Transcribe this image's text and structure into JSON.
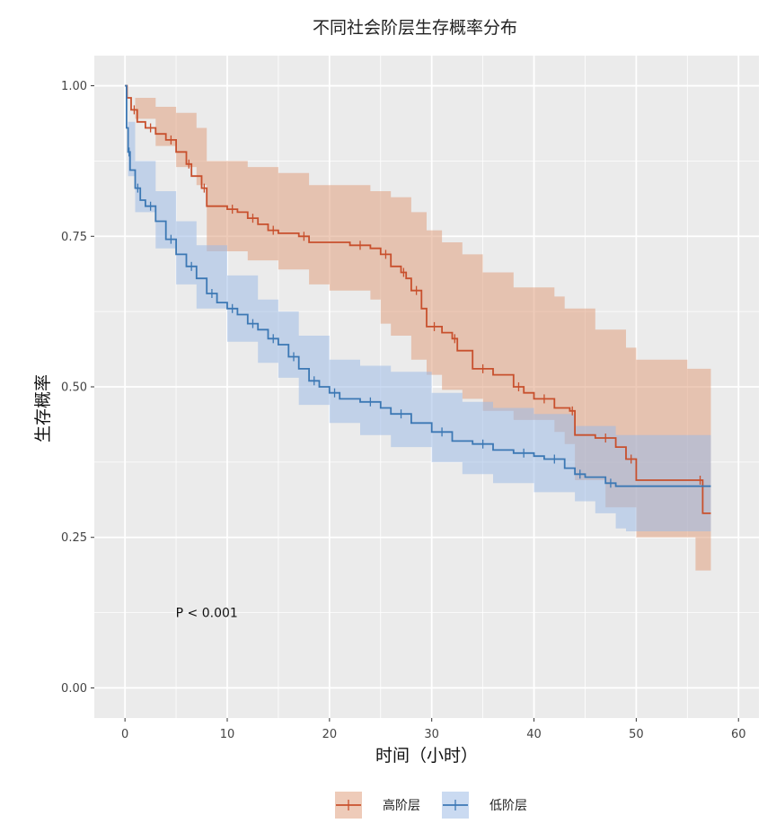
{
  "chart_data": {
    "type": "line",
    "title": "不同社会阶层生存概率分布",
    "xlabel": "时间（小时）",
    "ylabel": "生存概率",
    "xlim": [
      -3,
      62
    ],
    "ylim": [
      -0.05,
      1.05
    ],
    "x_ticks": [
      0,
      10,
      20,
      30,
      40,
      50,
      60
    ],
    "y_ticks": [
      0,
      0.25,
      0.5,
      0.75,
      1.0
    ],
    "x_tick_labels": [
      "0",
      "10",
      "20",
      "30",
      "40",
      "50",
      "60"
    ],
    "y_tick_labels": [
      "0.00",
      "0.25",
      "0.50",
      "0.75",
      "1.00"
    ],
    "grid": true,
    "legend_position": "bottom",
    "annotation": {
      "text": "P < 0.001",
      "x": 8,
      "y": 0.125
    },
    "colors": {
      "high_line": "#c8502d",
      "high_band": "#e0a080",
      "low_line": "#3c78b4",
      "low_band": "#9fbbe6",
      "panel": "#ebebeb",
      "grid": "#ffffff"
    },
    "series": [
      {
        "name": "高阶层",
        "color": "#c8502d",
        "points": [
          [
            0,
            1.0
          ],
          [
            0.2,
            0.98
          ],
          [
            0.6,
            0.96
          ],
          [
            1.2,
            0.94
          ],
          [
            2,
            0.93
          ],
          [
            3,
            0.92
          ],
          [
            4,
            0.91
          ],
          [
            5,
            0.89
          ],
          [
            6,
            0.87
          ],
          [
            6.5,
            0.85
          ],
          [
            7.5,
            0.83
          ],
          [
            8,
            0.8
          ],
          [
            10,
            0.795
          ],
          [
            11,
            0.79
          ],
          [
            12,
            0.78
          ],
          [
            13,
            0.77
          ],
          [
            14,
            0.76
          ],
          [
            15,
            0.755
          ],
          [
            17,
            0.75
          ],
          [
            18,
            0.74
          ],
          [
            22,
            0.735
          ],
          [
            24,
            0.73
          ],
          [
            25,
            0.72
          ],
          [
            26,
            0.7
          ],
          [
            27,
            0.69
          ],
          [
            27.5,
            0.68
          ],
          [
            28,
            0.66
          ],
          [
            29,
            0.63
          ],
          [
            29.5,
            0.6
          ],
          [
            31,
            0.59
          ],
          [
            32,
            0.58
          ],
          [
            32.5,
            0.56
          ],
          [
            34,
            0.53
          ],
          [
            36,
            0.52
          ],
          [
            38,
            0.5
          ],
          [
            39,
            0.49
          ],
          [
            40,
            0.48
          ],
          [
            42,
            0.465
          ],
          [
            43.5,
            0.46
          ],
          [
            44,
            0.42
          ],
          [
            46,
            0.415
          ],
          [
            48,
            0.4
          ],
          [
            49,
            0.38
          ],
          [
            50,
            0.345
          ],
          [
            56,
            0.345
          ],
          [
            56.5,
            0.29
          ],
          [
            57.3,
            0.29
          ]
        ],
        "upper": [
          [
            0,
            1.0
          ],
          [
            1,
            0.98
          ],
          [
            3,
            0.965
          ],
          [
            5,
            0.955
          ],
          [
            7,
            0.93
          ],
          [
            8,
            0.875
          ],
          [
            12,
            0.865
          ],
          [
            15,
            0.855
          ],
          [
            18,
            0.835
          ],
          [
            24,
            0.825
          ],
          [
            26,
            0.815
          ],
          [
            28,
            0.79
          ],
          [
            29.5,
            0.76
          ],
          [
            31,
            0.74
          ],
          [
            33,
            0.72
          ],
          [
            35,
            0.69
          ],
          [
            38,
            0.665
          ],
          [
            42,
            0.65
          ],
          [
            43,
            0.63
          ],
          [
            46,
            0.595
          ],
          [
            49,
            0.565
          ],
          [
            50,
            0.545
          ],
          [
            55,
            0.53
          ],
          [
            57.3,
            0.43
          ]
        ],
        "lower": [
          [
            0,
            1.0
          ],
          [
            1,
            0.945
          ],
          [
            3,
            0.9
          ],
          [
            5,
            0.865
          ],
          [
            7,
            0.835
          ],
          [
            8,
            0.725
          ],
          [
            12,
            0.71
          ],
          [
            15,
            0.695
          ],
          [
            18,
            0.67
          ],
          [
            20,
            0.66
          ],
          [
            24,
            0.645
          ],
          [
            25,
            0.605
          ],
          [
            26,
            0.585
          ],
          [
            28,
            0.545
          ],
          [
            29.5,
            0.52
          ],
          [
            31,
            0.495
          ],
          [
            33,
            0.48
          ],
          [
            35,
            0.46
          ],
          [
            38,
            0.445
          ],
          [
            42,
            0.425
          ],
          [
            43,
            0.405
          ],
          [
            44,
            0.345
          ],
          [
            47,
            0.3
          ],
          [
            50,
            0.25
          ],
          [
            55,
            0.25
          ],
          [
            55.8,
            0.195
          ],
          [
            57.3,
            0.195
          ]
        ]
      },
      {
        "name": "低阶层",
        "color": "#3c78b4",
        "points": [
          [
            0,
            1.0
          ],
          [
            0.15,
            0.93
          ],
          [
            0.3,
            0.89
          ],
          [
            0.5,
            0.86
          ],
          [
            1,
            0.83
          ],
          [
            1.5,
            0.81
          ],
          [
            2,
            0.8
          ],
          [
            3,
            0.775
          ],
          [
            4,
            0.745
          ],
          [
            5,
            0.72
          ],
          [
            6,
            0.7
          ],
          [
            7,
            0.68
          ],
          [
            8,
            0.655
          ],
          [
            9,
            0.64
          ],
          [
            10,
            0.63
          ],
          [
            11,
            0.62
          ],
          [
            12,
            0.605
          ],
          [
            13,
            0.595
          ],
          [
            14,
            0.58
          ],
          [
            15,
            0.57
          ],
          [
            16,
            0.55
          ],
          [
            17,
            0.53
          ],
          [
            18,
            0.51
          ],
          [
            19,
            0.5
          ],
          [
            20,
            0.49
          ],
          [
            21,
            0.48
          ],
          [
            23,
            0.475
          ],
          [
            25,
            0.465
          ],
          [
            26,
            0.455
          ],
          [
            28,
            0.44
          ],
          [
            30,
            0.425
          ],
          [
            32,
            0.41
          ],
          [
            34,
            0.405
          ],
          [
            36,
            0.395
          ],
          [
            38,
            0.39
          ],
          [
            40,
            0.385
          ],
          [
            41,
            0.38
          ],
          [
            43,
            0.365
          ],
          [
            44,
            0.355
          ],
          [
            45,
            0.35
          ],
          [
            47,
            0.34
          ],
          [
            48,
            0.335
          ],
          [
            57.3,
            0.335
          ]
        ],
        "upper": [
          [
            0,
            1.0
          ],
          [
            0.3,
            0.94
          ],
          [
            1,
            0.875
          ],
          [
            3,
            0.825
          ],
          [
            5,
            0.775
          ],
          [
            7,
            0.735
          ],
          [
            10,
            0.685
          ],
          [
            13,
            0.645
          ],
          [
            15,
            0.625
          ],
          [
            17,
            0.585
          ],
          [
            20,
            0.545
          ],
          [
            23,
            0.535
          ],
          [
            26,
            0.525
          ],
          [
            30,
            0.49
          ],
          [
            33,
            0.475
          ],
          [
            36,
            0.465
          ],
          [
            40,
            0.455
          ],
          [
            44,
            0.435
          ],
          [
            48,
            0.42
          ],
          [
            57.3,
            0.415
          ]
        ],
        "lower": [
          [
            0,
            1.0
          ],
          [
            0.3,
            0.85
          ],
          [
            1,
            0.79
          ],
          [
            3,
            0.73
          ],
          [
            5,
            0.67
          ],
          [
            7,
            0.63
          ],
          [
            10,
            0.575
          ],
          [
            13,
            0.54
          ],
          [
            15,
            0.515
          ],
          [
            17,
            0.47
          ],
          [
            20,
            0.44
          ],
          [
            23,
            0.42
          ],
          [
            26,
            0.4
          ],
          [
            30,
            0.375
          ],
          [
            33,
            0.355
          ],
          [
            36,
            0.34
          ],
          [
            40,
            0.325
          ],
          [
            44,
            0.31
          ],
          [
            46,
            0.29
          ],
          [
            48,
            0.265
          ],
          [
            49,
            0.26
          ],
          [
            57.3,
            0.26
          ]
        ]
      }
    ]
  }
}
